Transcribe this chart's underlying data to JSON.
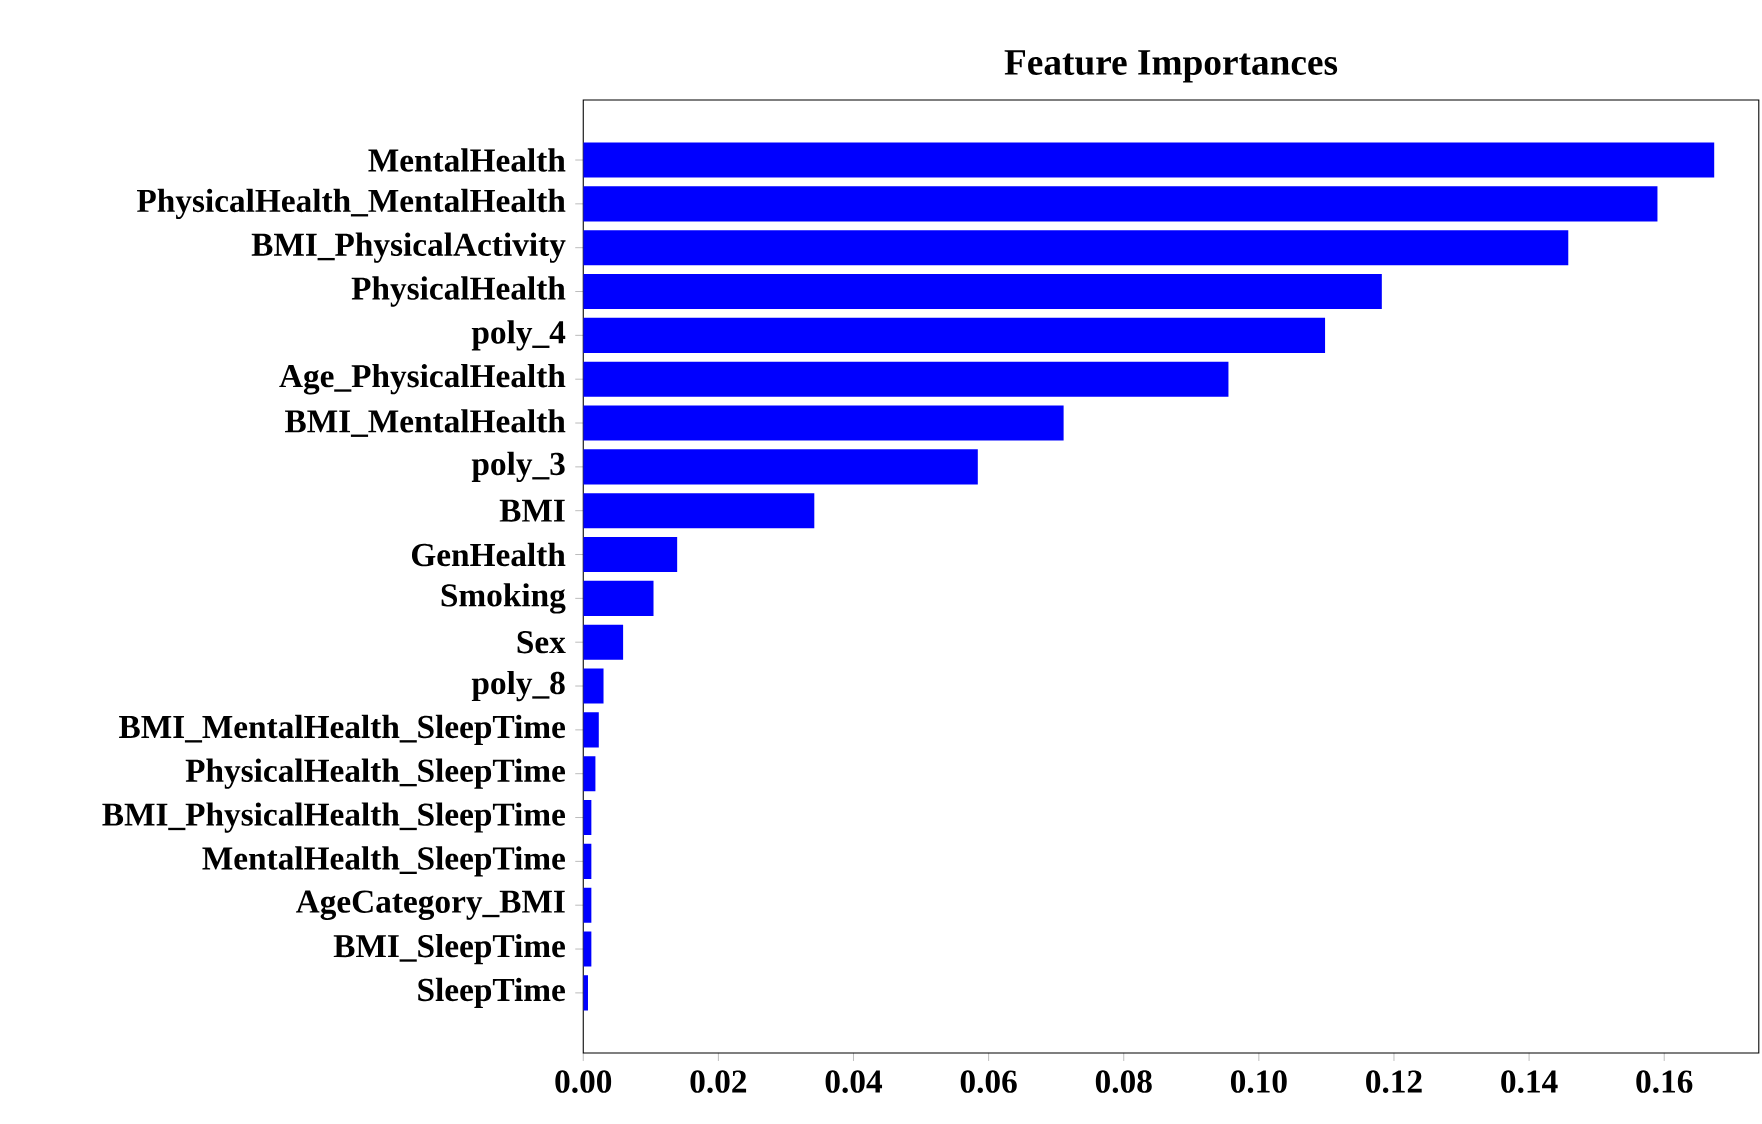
{
  "chart_data": {
    "type": "bar",
    "orientation": "horizontal",
    "title": "Feature Importances",
    "categories": [
      "MentalHealth",
      "PhysicalHealth_MentalHealth",
      "BMI_PhysicalActivity",
      "PhysicalHealth",
      "poly_4",
      "Age_PhysicalHealth",
      "BMI_MentalHealth",
      "poly_3",
      "BMI",
      "GenHealth",
      "Smoking",
      "Sex",
      "poly_8",
      "BMI_MentalHealth_SleepTime",
      "PhysicalHealth_SleepTime",
      "BMI_PhysicalHealth_SleepTime",
      "MentalHealth_SleepTime",
      "AgeCategory_BMI",
      "BMI_SleepTime",
      "SleepTime"
    ],
    "values": [
      0.1674,
      0.159,
      0.1458,
      0.1182,
      0.1098,
      0.0955,
      0.0711,
      0.0584,
      0.0342,
      0.0139,
      0.0104,
      0.0059,
      0.003,
      0.0023,
      0.0018,
      0.0012,
      0.0012,
      0.0012,
      0.0012,
      0.0007
    ],
    "color": "#0000ff",
    "xlim": [
      0,
      0.174
    ],
    "xticks": [
      {
        "value": 0,
        "label": "0.00"
      },
      0.02,
      0.04,
      0.06,
      0.08,
      {
        "value": 0.1,
        "label": "0.10"
      },
      0.12,
      0.14,
      0.16
    ],
    "grid": false
  }
}
